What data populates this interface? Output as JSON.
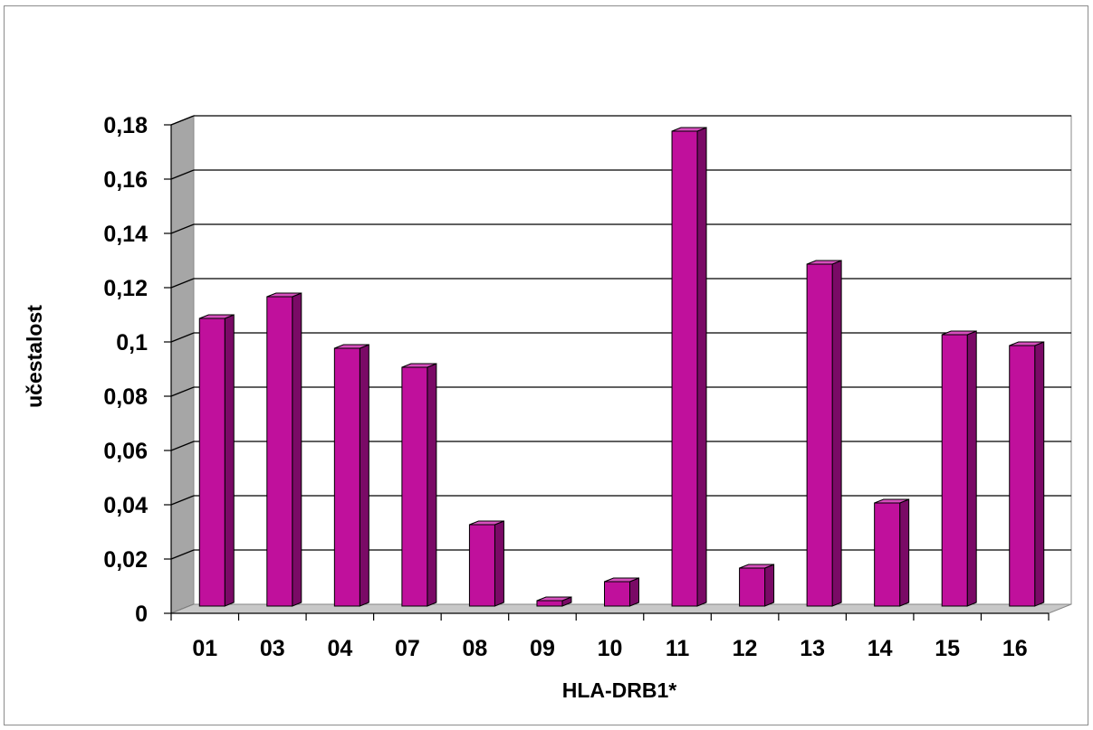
{
  "chart_data": {
    "type": "bar",
    "style": "3d-clustered-column",
    "xlabel": "HLA-DRB1*",
    "ylabel": "učestalost",
    "categories": [
      "01",
      "03",
      "04",
      "07",
      "08",
      "09",
      "10",
      "11",
      "12",
      "13",
      "14",
      "15",
      "16"
    ],
    "values": [
      0.106,
      0.114,
      0.095,
      0.088,
      0.03,
      0.002,
      0.009,
      0.175,
      0.014,
      0.126,
      0.038,
      0.1,
      0.096
    ],
    "ylim": [
      0,
      0.18
    ],
    "yticks": [
      0,
      0.02,
      0.04,
      0.06,
      0.08,
      0.1,
      0.12,
      0.14,
      0.16,
      0.18
    ],
    "ytick_labels": [
      "0",
      "0,02",
      "0,04",
      "0,06",
      "0,08",
      "0,1",
      "0,12",
      "0,14",
      "0,16",
      "0,18"
    ],
    "grid": true,
    "legend": "none",
    "colors": {
      "bar_front": "#c0109c",
      "bar_side": "#7a0a66",
      "bar_top": "#d64fbd",
      "back_wall": "#ffffff",
      "side_wall": "#a6a6a6",
      "floor": "#c8c8c8",
      "gridline": "#000000"
    }
  }
}
